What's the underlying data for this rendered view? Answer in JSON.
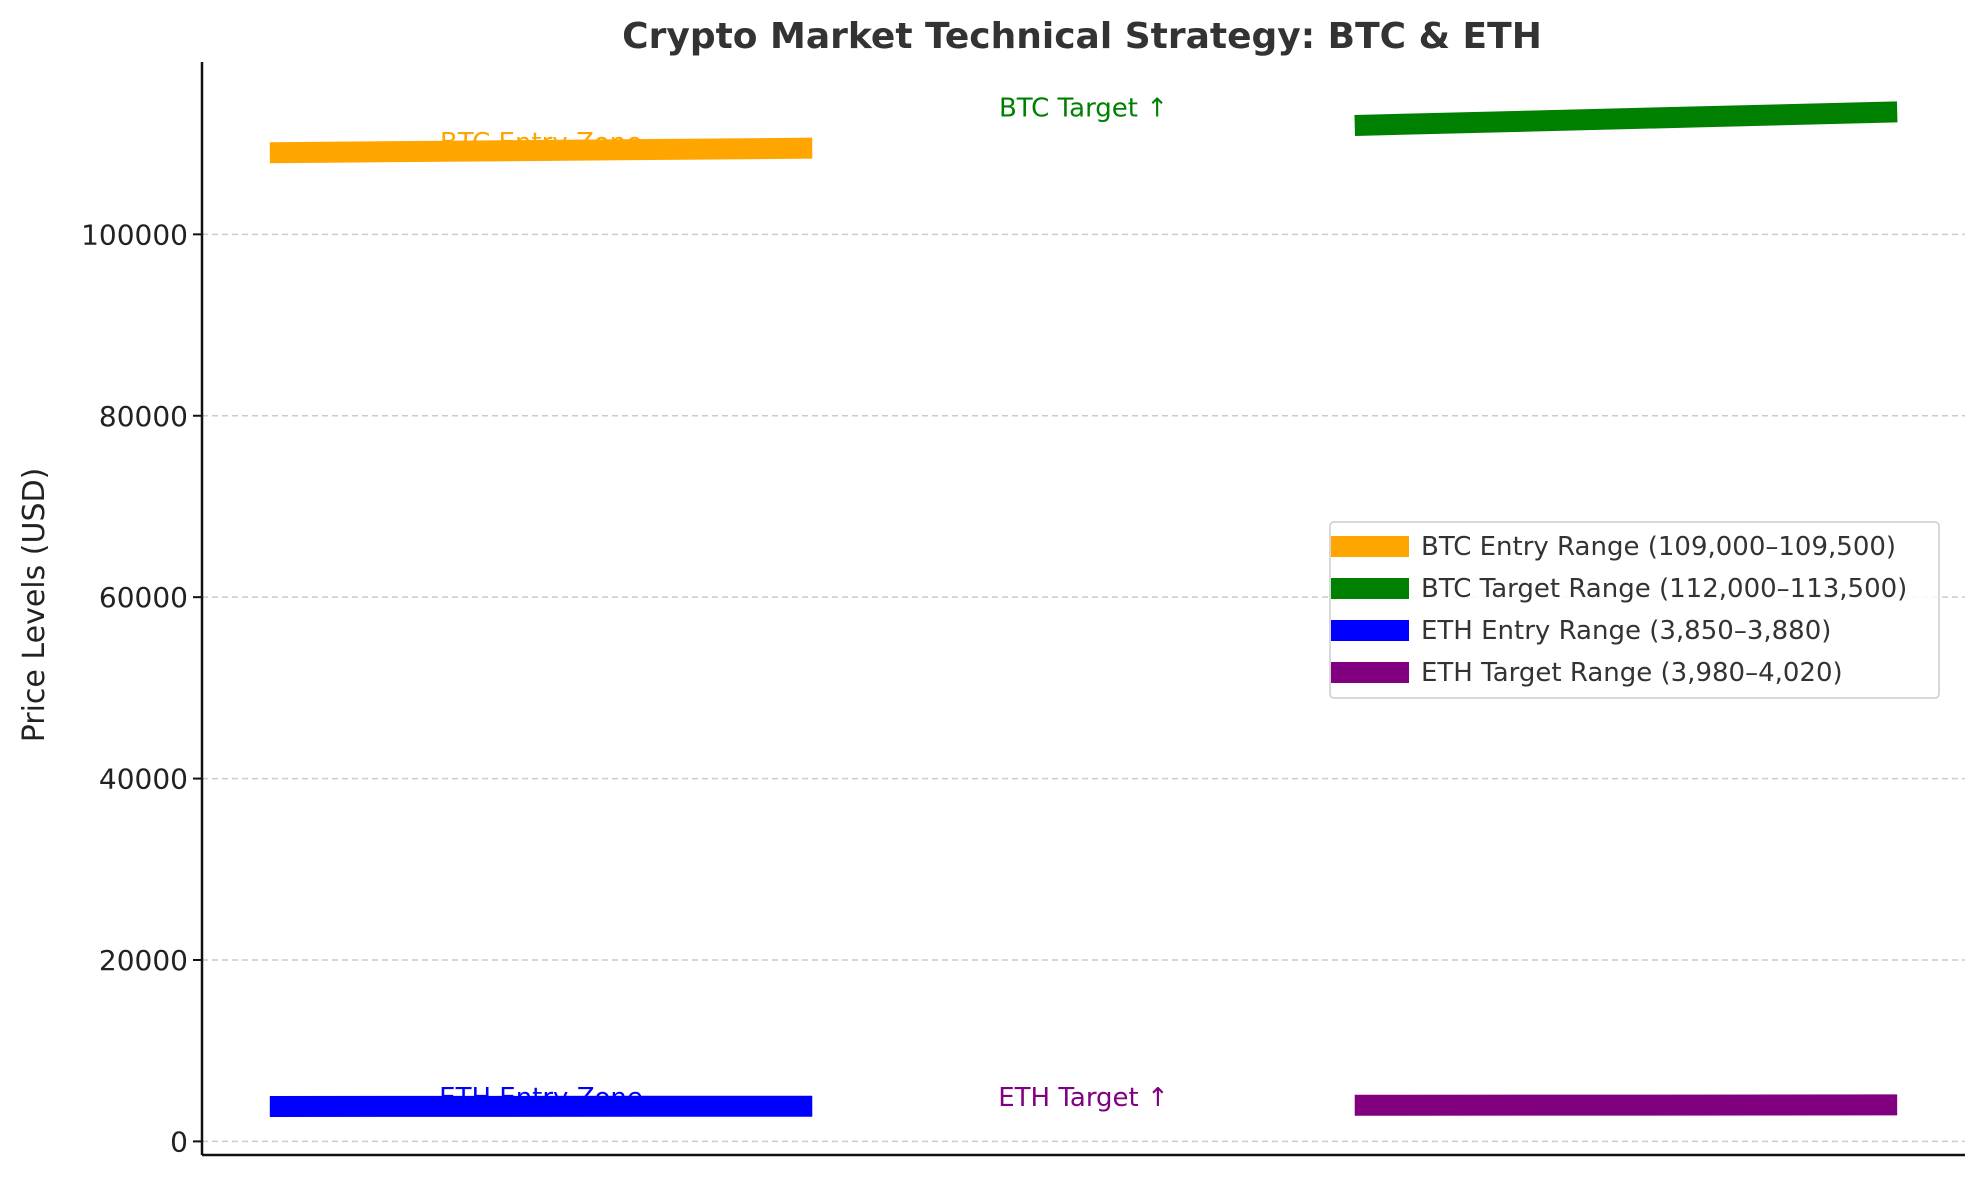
{
  "chart_data": {
    "type": "line",
    "title": "Crypto Market Technical Strategy: BTC & ETH",
    "xlabel": "",
    "ylabel": "Price Levels (USD)",
    "ylim": [
      -1500,
      119000
    ],
    "yticks": [
      0,
      20000,
      40000,
      60000,
      80000,
      100000
    ],
    "ytick_labels": [
      "0",
      "20000",
      "40000",
      "60000",
      "80000",
      "100000"
    ],
    "grid": "y-dashed",
    "legend_position": "center-right",
    "series": [
      {
        "name": "BTC Entry Range (109,000–109,500)",
        "color": "#FFA500",
        "x": [
          0,
          1
        ],
        "values": [
          109000,
          109500
        ]
      },
      {
        "name": "BTC Target Range (112,000–113,500)",
        "color": "#008000",
        "x": [
          2,
          3
        ],
        "values": [
          112000,
          113500
        ]
      },
      {
        "name": "ETH Entry Range (3,850–3,880)",
        "color": "#0000FF",
        "x": [
          0,
          1
        ],
        "values": [
          3850,
          3880
        ]
      },
      {
        "name": "ETH Target Range (3,980–4,020)",
        "color": "#800080",
        "x": [
          2,
          3
        ],
        "values": [
          3980,
          4020
        ]
      }
    ],
    "annotations": [
      {
        "text": "BTC Entry Zone",
        "x": 0.5,
        "y": 109200,
        "color": "#FFA500"
      },
      {
        "text": "BTC Target ↑",
        "x": 1.5,
        "y": 113000,
        "color": "#008000"
      },
      {
        "text": "ETH Entry Zone",
        "x": 0.5,
        "y": 3900,
        "color": "#0000FF"
      },
      {
        "text": "ETH Target ↑",
        "x": 1.5,
        "y": 3900,
        "color": "#800080"
      }
    ]
  }
}
